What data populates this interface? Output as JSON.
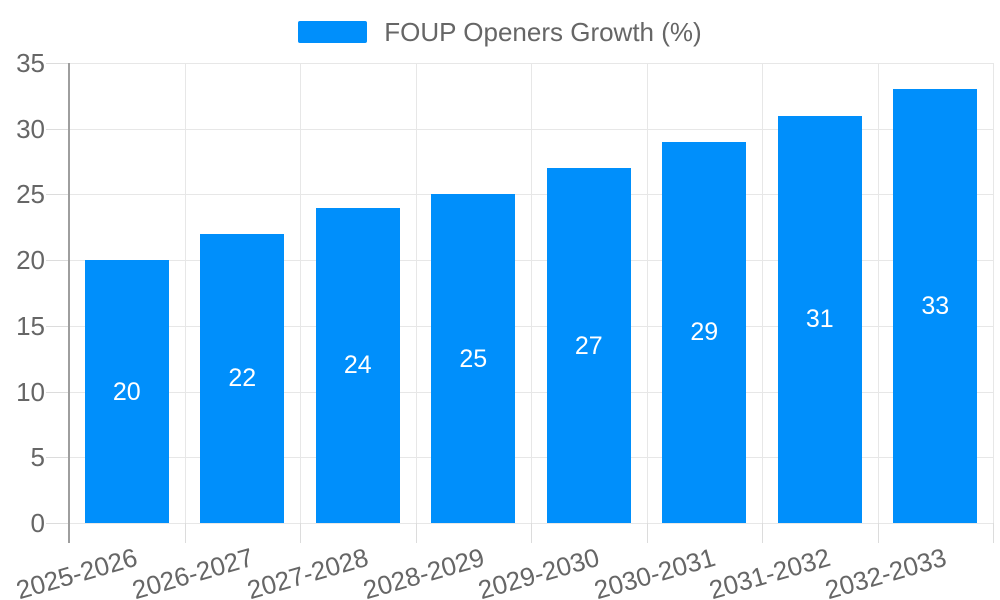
{
  "legend": {
    "label": "FOUP Openers Growth (%)",
    "swatch_color": "#008FFB"
  },
  "chart_data": {
    "type": "bar",
    "title": "",
    "xlabel": "",
    "ylabel": "",
    "categories": [
      "2025-2026",
      "2026-2027",
      "2027-2028",
      "2028-2029",
      "2029-2030",
      "2030-2031",
      "2031-2032",
      "2032-2033"
    ],
    "series": [
      {
        "name": "FOUP Openers Growth (%)",
        "values": [
          20,
          22,
          24,
          25,
          27,
          29,
          31,
          33
        ]
      }
    ],
    "value_labels": [
      "20",
      "22",
      "24",
      "25",
      "27",
      "29",
      "31",
      "33"
    ],
    "ylim": [
      0,
      35
    ],
    "yticks": [
      0,
      5,
      10,
      15,
      20,
      25,
      30,
      35
    ],
    "grid": true,
    "legend_position": "top",
    "colors": {
      "bar": "#008FFB",
      "value_label_text": "#ffffff",
      "axis_text": "#666666",
      "gridline": "#e7e7e7",
      "tick": "#dcdcdc",
      "axis_line": "#9e9e9e"
    }
  }
}
